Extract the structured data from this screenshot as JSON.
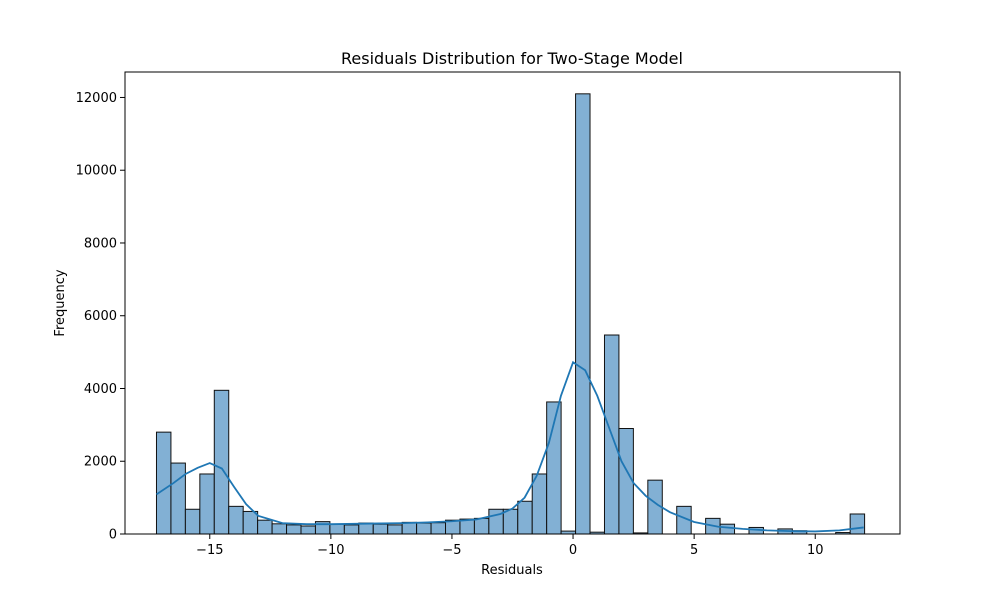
{
  "chart_data": {
    "type": "bar",
    "title": "Residuals Distribution for Two-Stage Model",
    "xlabel": "Residuals",
    "ylabel": "Frequency",
    "xlim": [
      -18.5,
      13.5
    ],
    "ylim": [
      0,
      12700
    ],
    "xticks": [
      -15,
      -10,
      -5,
      0,
      5,
      10
    ],
    "xtick_labels": [
      "−15",
      "−10",
      "−5",
      "0",
      "5",
      "10"
    ],
    "yticks": [
      0,
      2000,
      4000,
      6000,
      8000,
      10000,
      12000
    ],
    "ytick_labels": [
      "0",
      "2000",
      "4000",
      "6000",
      "8000",
      "10000",
      "12000"
    ],
    "bin_start": -17.2,
    "bin_width": 0.5967,
    "values": [
      2800,
      1950,
      680,
      1650,
      3950,
      760,
      620,
      380,
      280,
      250,
      220,
      340,
      270,
      250,
      300,
      270,
      250,
      320,
      300,
      310,
      380,
      410,
      430,
      680,
      680,
      900,
      1650,
      3630,
      80,
      12100,
      50,
      5470,
      2900,
      30,
      1480,
      0,
      760,
      0,
      430,
      270,
      0,
      180,
      0,
      140,
      90,
      0,
      0,
      40,
      550
    ],
    "kde": {
      "x": [
        -17.2,
        -16.5,
        -16.0,
        -15.5,
        -15.0,
        -14.5,
        -14.0,
        -13.5,
        -13.0,
        -12.0,
        -11.0,
        -10.0,
        -9.0,
        -8.0,
        -7.0,
        -6.0,
        -5.0,
        -4.0,
        -3.0,
        -2.5,
        -2.0,
        -1.5,
        -1.0,
        -0.5,
        0.0,
        0.5,
        1.0,
        1.5,
        2.0,
        2.5,
        3.0,
        3.5,
        4.0,
        5.0,
        6.0,
        7.0,
        8.0,
        9.0,
        10.0,
        11.0,
        12.0
      ],
      "y": [
        1090,
        1400,
        1650,
        1820,
        1950,
        1800,
        1300,
        820,
        500,
        300,
        270,
        270,
        280,
        290,
        300,
        320,
        350,
        400,
        550,
        700,
        1000,
        1600,
        2500,
        3800,
        4720,
        4500,
        3800,
        2900,
        2000,
        1400,
        1050,
        800,
        600,
        330,
        200,
        140,
        100,
        80,
        70,
        100,
        180
      ]
    }
  }
}
